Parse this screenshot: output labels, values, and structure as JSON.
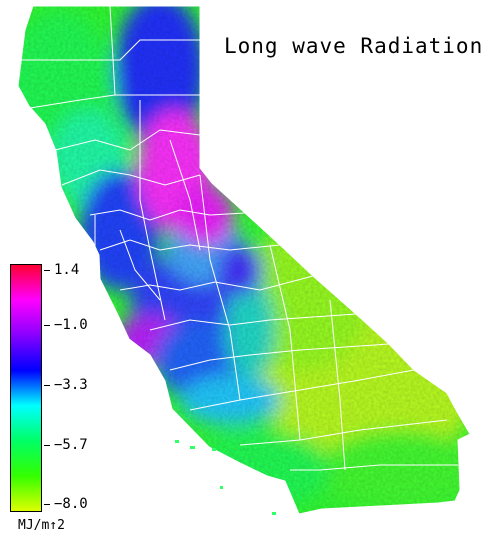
{
  "title": "Long wave Radiation",
  "legend": {
    "units": "MJ/m↑2",
    "ticks": [
      "1.4",
      "−1.0",
      "−3.3",
      "−5.7",
      "−8.0"
    ],
    "colors": [
      "#ff0033",
      "#ff00ff",
      "#8800ff",
      "#0000ff",
      "#00ffff",
      "#00ff66",
      "#33ff00",
      "#ddff00"
    ]
  },
  "map": {
    "region": "California",
    "colors": {
      "north_coast": "#22ff44",
      "sierra_high": "#cc22ff",
      "magenta": "#ff33ff",
      "blue": "#2233ff",
      "cyan": "#22ddff",
      "green": "#33ff33",
      "lime": "#99ff33",
      "yellow": "#ddff22",
      "border": "#ffffff"
    }
  }
}
